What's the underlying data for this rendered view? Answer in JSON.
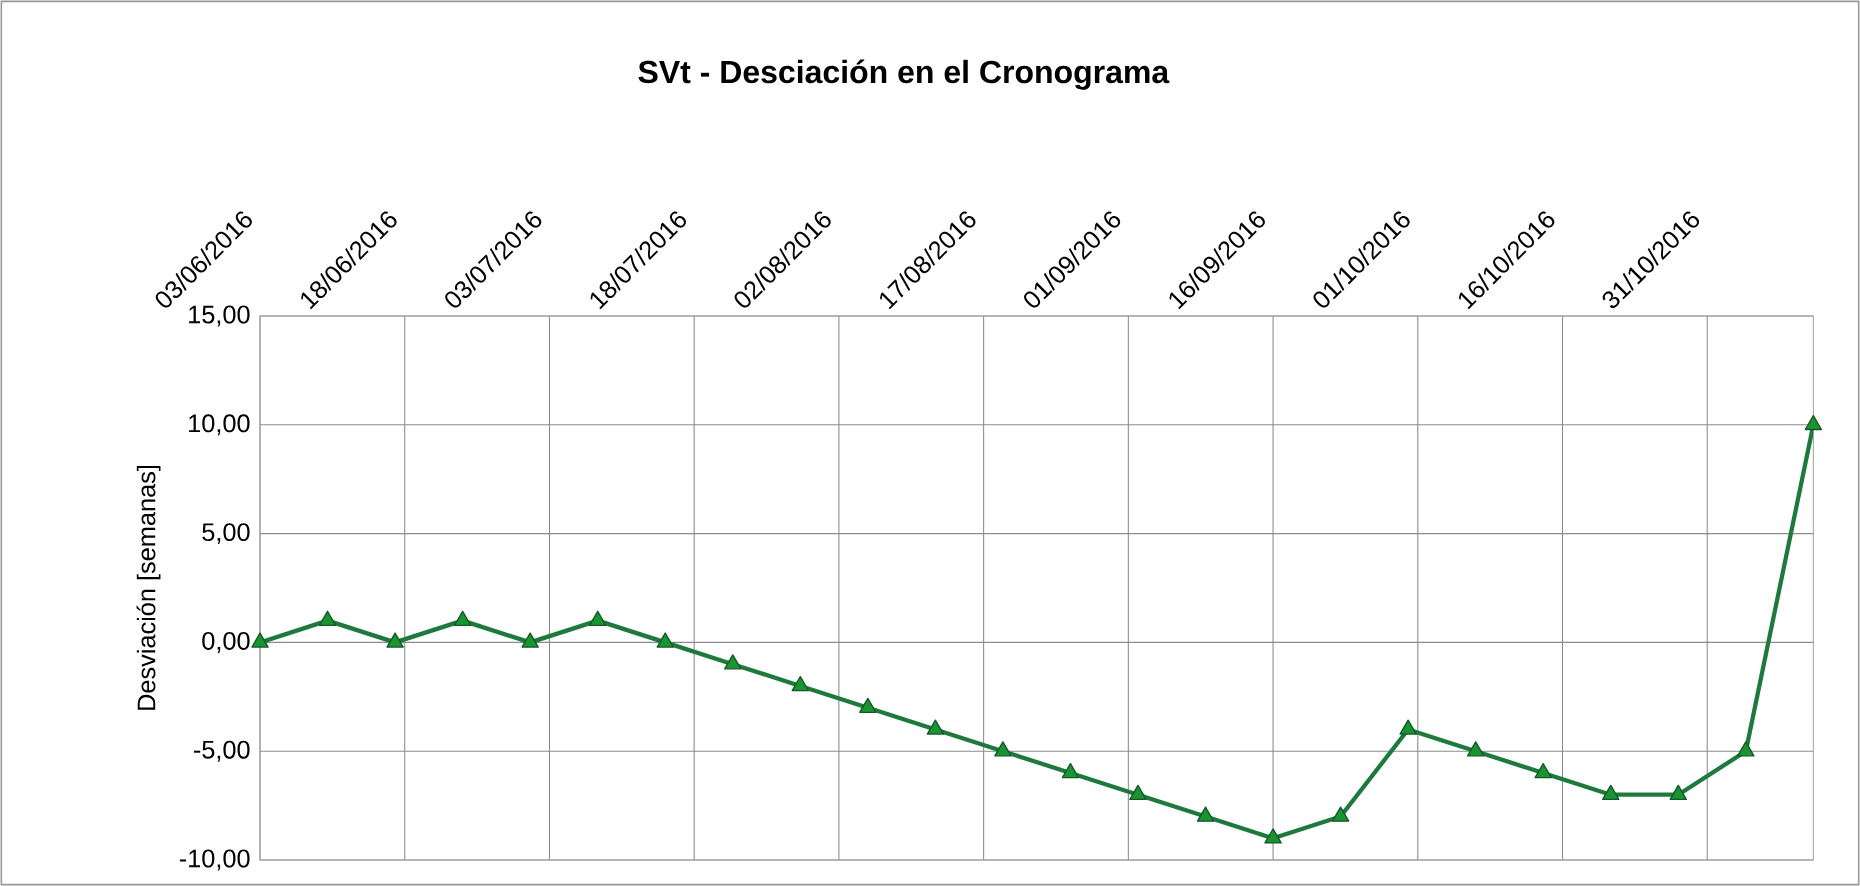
{
  "chart_data": {
    "type": "line",
    "title": "SVt - Desciación en el Cronograma",
    "ylabel": "Desviación [semanas]",
    "x": [
      "2016-06-03",
      "2016-06-10",
      "2016-06-17",
      "2016-06-24",
      "2016-07-01",
      "2016-07-08",
      "2016-07-15",
      "2016-07-22",
      "2016-07-29",
      "2016-08-05",
      "2016-08-12",
      "2016-08-19",
      "2016-08-26",
      "2016-09-02",
      "2016-09-09",
      "2016-09-16",
      "2016-09-23",
      "2016-09-30",
      "2016-10-07",
      "2016-10-14",
      "2016-10-21",
      "2016-10-28",
      "2016-11-04",
      "2016-11-11"
    ],
    "series": [
      {
        "color": "#1e7a3c",
        "values": [
          0,
          1,
          0,
          1,
          0,
          1,
          0,
          -1,
          -2,
          -3,
          -4,
          -5,
          -6,
          -7,
          -8,
          -9,
          -8,
          -4,
          -5,
          -6,
          -7,
          -7,
          -5,
          10
        ]
      }
    ],
    "xlim": [
      "2016-06-03",
      "2016-11-11"
    ],
    "xticks": [
      {
        "value": "2016-06-03",
        "label": "03/06/2016"
      },
      {
        "value": "2016-06-18",
        "label": "18/06/2016"
      },
      {
        "value": "2016-07-03",
        "label": "03/07/2016"
      },
      {
        "value": "2016-07-18",
        "label": "18/07/2016"
      },
      {
        "value": "2016-08-02",
        "label": "02/08/2016"
      },
      {
        "value": "2016-08-17",
        "label": "17/08/2016"
      },
      {
        "value": "2016-09-01",
        "label": "01/09/2016"
      },
      {
        "value": "2016-09-16",
        "label": "16/09/2016"
      },
      {
        "value": "2016-10-01",
        "label": "01/10/2016"
      },
      {
        "value": "2016-10-16",
        "label": "16/10/2016"
      },
      {
        "value": "2016-10-31",
        "label": "31/10/2016"
      }
    ],
    "ylim": [
      -10,
      15
    ],
    "yticks": [
      {
        "value": -10,
        "label": "-10,00"
      },
      {
        "value": -5,
        "label": "-5,00"
      },
      {
        "value": 0,
        "label": "0,00"
      },
      {
        "value": 5,
        "label": "5,00"
      },
      {
        "value": 10,
        "label": "10,00"
      },
      {
        "value": 15,
        "label": "15,00"
      }
    ],
    "grid": true,
    "marker": "triangle",
    "line_style": "solid"
  }
}
